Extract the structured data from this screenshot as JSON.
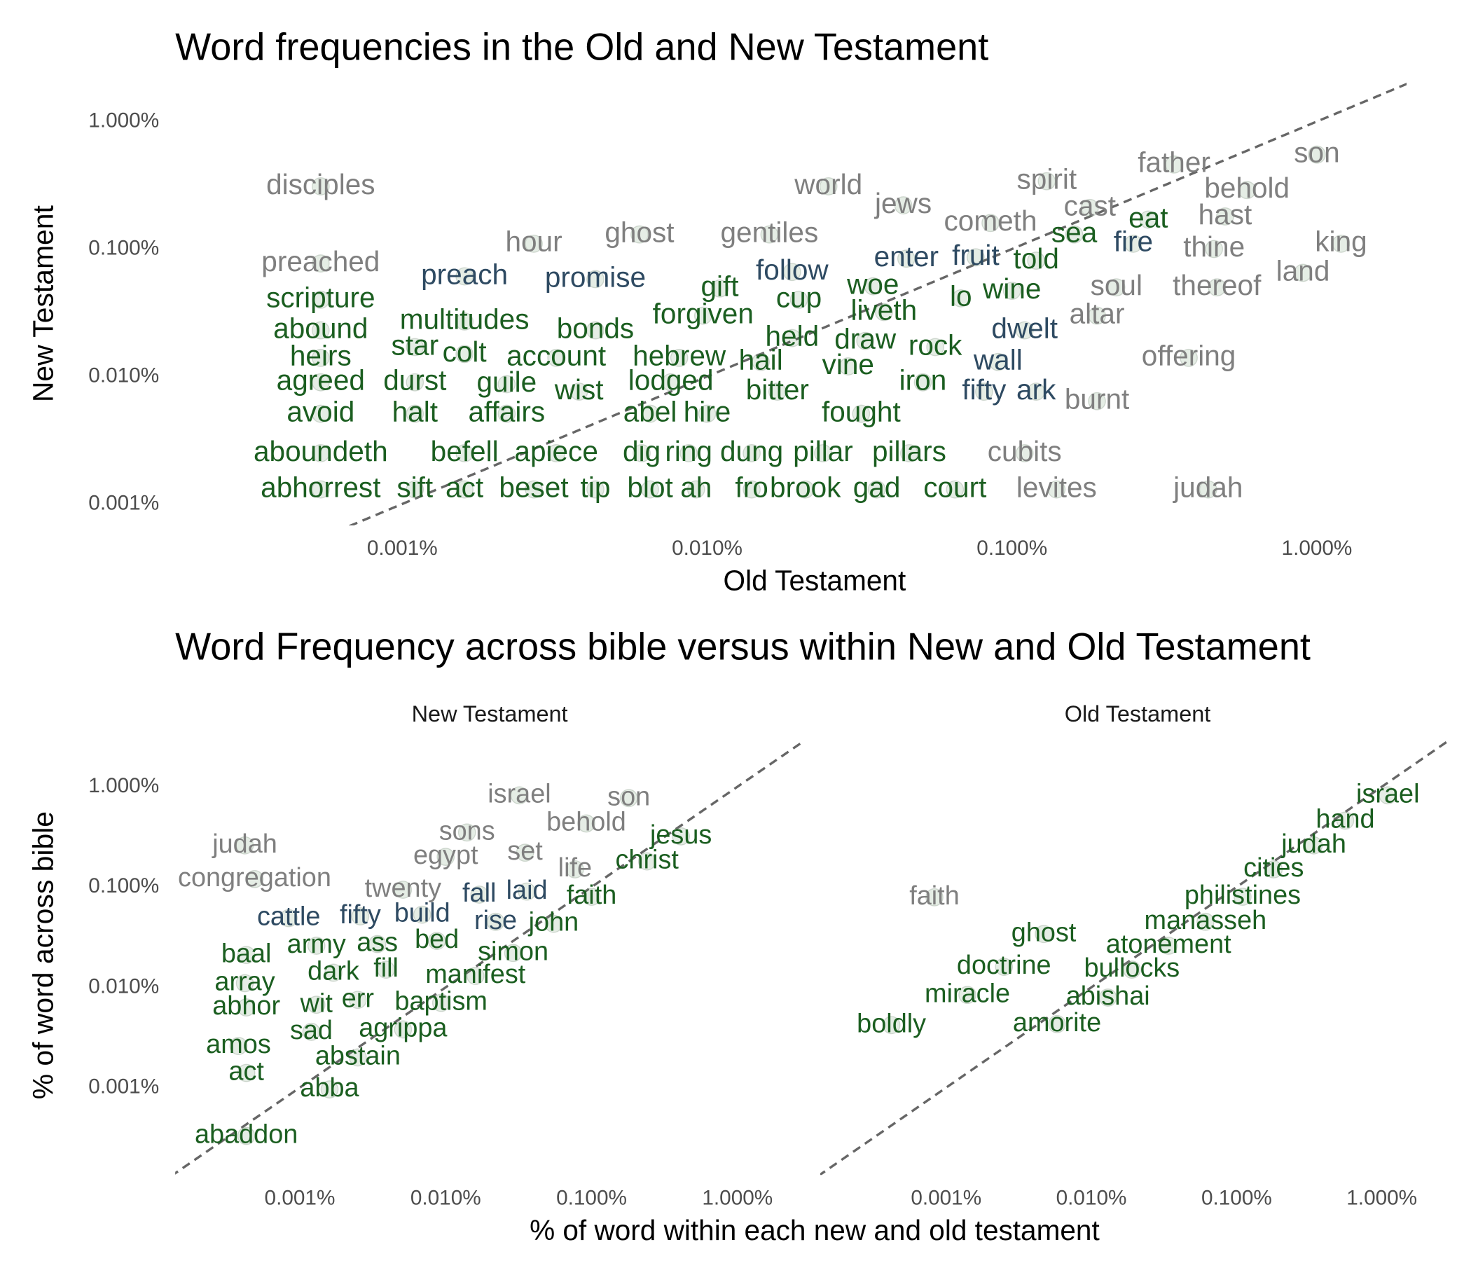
{
  "chart_data": [
    {
      "type": "scatter",
      "title": "Word frequencies in the Old and New Testament",
      "xlabel": "Old Testament",
      "ylabel": "New Testament",
      "xscale": "log",
      "yscale": "log",
      "diagonal": true,
      "point_color": "#2d6a2d",
      "xlim": [
        0.00018,
        1.9
      ],
      "ylim": [
        0.00074,
        1.9
      ],
      "xticks": [
        {
          "value": 0.001,
          "label": "0.001%"
        },
        {
          "value": 0.01,
          "label": "0.010%"
        },
        {
          "value": 0.1,
          "label": "0.100%"
        },
        {
          "value": 1,
          "label": "1.000%"
        }
      ],
      "yticks": [
        {
          "value": 0.001,
          "label": "0.001%"
        },
        {
          "value": 0.01,
          "label": "0.010%"
        },
        {
          "value": 0.1,
          "label": "0.100%"
        },
        {
          "value": 1,
          "label": "1.000%"
        }
      ],
      "words": [
        "disciples",
        "world",
        "jews",
        "spirit",
        "father",
        "son",
        "behold",
        "cast",
        "cometh",
        "hast",
        "hour",
        "ghost",
        "gentiles",
        "thine",
        "king",
        "preached",
        "land",
        "soul",
        "thereof",
        "altar",
        "offering",
        "burnt",
        "cubits",
        "levites",
        "judah",
        "preach",
        "promise",
        "follow",
        "enter",
        "dwelt",
        "wall",
        "fifty",
        "ark",
        "fire",
        "fruit",
        "scripture",
        "abound",
        "heirs",
        "agreed",
        "avoid",
        "aboundeth",
        "abhorrest",
        "multitudes",
        "star",
        "colt",
        "account",
        "durst",
        "guile",
        "wist",
        "halt",
        "affairs",
        "befell",
        "apiece",
        "sift",
        "act",
        "beset",
        "tip",
        "bonds",
        "forgiven",
        "gift",
        "cup",
        "woe",
        "liveth",
        "held",
        "draw",
        "hebrew",
        "hail",
        "vine",
        "lo",
        "rock",
        "iron",
        "bitter",
        "lodged",
        "abel",
        "hire",
        "fought",
        "dig",
        "ring",
        "dung",
        "pillar",
        "pillars",
        "blot",
        "ah",
        "fro",
        "brook",
        "gad",
        "court",
        "eat",
        "told",
        "wine",
        "sea"
      ],
      "x": [
        0.00054,
        0.025,
        0.044,
        0.13,
        0.34,
        1.0,
        0.59,
        0.18,
        0.085,
        0.5,
        0.0027,
        0.006,
        0.016,
        0.46,
        1.2,
        0.00054,
        0.9,
        0.22,
        0.47,
        0.19,
        0.38,
        0.19,
        0.11,
        0.14,
        0.44,
        0.0016,
        0.0043,
        0.019,
        0.045,
        0.11,
        0.09,
        0.081,
        0.12,
        0.25,
        0.076,
        0.00054,
        0.00054,
        0.00054,
        0.00054,
        0.00054,
        0.00054,
        0.00054,
        0.0016,
        0.0011,
        0.0016,
        0.0032,
        0.0011,
        0.0022,
        0.0038,
        0.0011,
        0.0022,
        0.0016,
        0.0032,
        0.0011,
        0.0016,
        0.0027,
        0.0043,
        0.0043,
        0.0097,
        0.011,
        0.02,
        0.035,
        0.038,
        0.019,
        0.033,
        0.0081,
        0.015,
        0.029,
        0.068,
        0.056,
        0.051,
        0.017,
        0.0076,
        0.0065,
        0.01,
        0.032,
        0.0061,
        0.0087,
        0.014,
        0.024,
        0.046,
        0.0065,
        0.0092,
        0.014,
        0.021,
        0.036,
        0.065,
        0.28,
        0.12,
        0.1,
        0.16
      ],
      "y": [
        0.31,
        0.31,
        0.22,
        0.34,
        0.46,
        0.55,
        0.29,
        0.21,
        0.16,
        0.18,
        0.11,
        0.13,
        0.13,
        0.1,
        0.11,
        0.077,
        0.065,
        0.05,
        0.05,
        0.03,
        0.014,
        0.0064,
        0.0025,
        0.0013,
        0.0013,
        0.061,
        0.058,
        0.066,
        0.084,
        0.023,
        0.013,
        0.0076,
        0.0076,
        0.11,
        0.086,
        0.04,
        0.023,
        0.014,
        0.009,
        0.0051,
        0.0025,
        0.0013,
        0.027,
        0.017,
        0.015,
        0.014,
        0.009,
        0.0087,
        0.0076,
        0.0051,
        0.0051,
        0.0025,
        0.0025,
        0.0013,
        0.0013,
        0.0013,
        0.0013,
        0.023,
        0.03,
        0.049,
        0.04,
        0.051,
        0.032,
        0.02,
        0.019,
        0.014,
        0.013,
        0.012,
        0.041,
        0.017,
        0.009,
        0.0076,
        0.009,
        0.0051,
        0.0051,
        0.0051,
        0.0025,
        0.0025,
        0.0025,
        0.0025,
        0.0025,
        0.0013,
        0.0013,
        0.0013,
        0.0013,
        0.0013,
        0.0013,
        0.17,
        0.081,
        0.047,
        0.13
      ],
      "label_colors": [
        "#7f7f7f",
        "#7f7f7f",
        "#7f7f7f",
        "#7f7f7f",
        "#7f7f7f",
        "#7f7f7f",
        "#7f7f7f",
        "#7f7f7f",
        "#7f7f7f",
        "#7f7f7f",
        "#7f7f7f",
        "#7f7f7f",
        "#7f7f7f",
        "#7f7f7f",
        "#7f7f7f",
        "#7f7f7f",
        "#7f7f7f",
        "#7f7f7f",
        "#7f7f7f",
        "#7f7f7f",
        "#7f7f7f",
        "#7f7f7f",
        "#7f7f7f",
        "#7f7f7f",
        "#7f7f7f",
        "#2e4a62",
        "#2e4a62",
        "#2e4a62",
        "#2e4a62",
        "#2e4a62",
        "#2e4a62",
        "#2e4a62",
        "#2e4a62",
        "#2e4a62",
        "#2e4a62",
        "#1b5e20",
        "#1b5e20",
        "#1b5e20",
        "#1b5e20",
        "#1b5e20",
        "#1b5e20",
        "#1b5e20",
        "#1b5e20",
        "#1b5e20",
        "#1b5e20",
        "#1b5e20",
        "#1b5e20",
        "#1b5e20",
        "#1b5e20",
        "#1b5e20",
        "#1b5e20",
        "#1b5e20",
        "#1b5e20",
        "#1b5e20",
        "#1b5e20",
        "#1b5e20",
        "#1b5e20",
        "#1b5e20",
        "#1b5e20",
        "#1b5e20",
        "#1b5e20",
        "#1b5e20",
        "#1b5e20",
        "#1b5e20",
        "#1b5e20",
        "#1b5e20",
        "#1b5e20",
        "#1b5e20",
        "#1b5e20",
        "#1b5e20",
        "#1b5e20",
        "#1b5e20",
        "#1b5e20",
        "#1b5e20",
        "#1b5e20",
        "#1b5e20",
        "#1b5e20",
        "#1b5e20",
        "#1b5e20",
        "#1b5e20",
        "#1b5e20",
        "#1b5e20",
        "#1b5e20",
        "#1b5e20",
        "#1b5e20",
        "#1b5e20",
        "#1b5e20",
        "#1b5e20",
        "#1b5e20",
        "#1b5e20",
        "#1b5e20"
      ]
    },
    {
      "type": "scatter",
      "title": "Word Frequency across bible versus within New and Old Testament",
      "xlabel": "% of word within each new and old testament",
      "ylabel": "% of word across bible",
      "xscale": "log",
      "yscale": "log",
      "diagonal": true,
      "point_color": "#2d6a2d",
      "xlim": [
        0.00014,
        2.7
      ],
      "ylim": [
        0.00015,
        2.9
      ],
      "xticks": [
        {
          "value": 0.001,
          "label": "0.001%"
        },
        {
          "value": 0.01,
          "label": "0.010%"
        },
        {
          "value": 0.1,
          "label": "0.100%"
        },
        {
          "value": 1,
          "label": "1.000%"
        }
      ],
      "yticks": [
        {
          "value": 0.001,
          "label": "0.001%"
        },
        {
          "value": 0.01,
          "label": "0.010%"
        },
        {
          "value": 0.1,
          "label": "0.100%"
        },
        {
          "value": 1,
          "label": "1.000%"
        }
      ],
      "panels": [
        {
          "title": "New Testament",
          "words": [
            "israel",
            "son",
            "judah",
            "sons",
            "behold",
            "congregation",
            "egypt",
            "set",
            "life",
            "twenty",
            "fall",
            "laid",
            "cattle",
            "fifty",
            "build",
            "rise",
            "jesus",
            "christ",
            "faith",
            "john",
            "simon",
            "manifest",
            "baal",
            "army",
            "ass",
            "bed",
            "array",
            "dark",
            "fill",
            "abhor",
            "wit",
            "err",
            "baptism",
            "amos",
            "sad",
            "agrippa",
            "abstain",
            "act",
            "abba",
            "abaddon"
          ],
          "x": [
            0.032,
            0.18,
            0.00042,
            0.014,
            0.092,
            0.00049,
            0.01,
            0.035,
            0.077,
            0.0051,
            0.017,
            0.036,
            0.00084,
            0.0026,
            0.0069,
            0.022,
            0.41,
            0.24,
            0.1,
            0.055,
            0.029,
            0.016,
            0.00043,
            0.0013,
            0.0034,
            0.0087,
            0.00042,
            0.0017,
            0.0039,
            0.00043,
            0.0013,
            0.0025,
            0.0093,
            0.00038,
            0.0012,
            0.0051,
            0.0025,
            0.00043,
            0.0016,
            0.00043
          ],
          "y": [
            0.82,
            0.77,
            0.26,
            0.35,
            0.43,
            0.12,
            0.2,
            0.22,
            0.15,
            0.094,
            0.084,
            0.09,
            0.049,
            0.051,
            0.053,
            0.045,
            0.32,
            0.18,
            0.08,
            0.043,
            0.022,
            0.013,
            0.021,
            0.026,
            0.027,
            0.029,
            0.011,
            0.014,
            0.015,
            0.0063,
            0.0067,
            0.0075,
            0.007,
            0.0026,
            0.0036,
            0.0038,
            0.002,
            0.0014,
            0.00096,
            0.00033
          ],
          "label_colors": [
            "#7f7f7f",
            "#7f7f7f",
            "#7f7f7f",
            "#7f7f7f",
            "#7f7f7f",
            "#7f7f7f",
            "#7f7f7f",
            "#7f7f7f",
            "#7f7f7f",
            "#7f7f7f",
            "#2e4a62",
            "#2e4a62",
            "#2e4a62",
            "#2e4a62",
            "#2e4a62",
            "#2e4a62",
            "#1b5e20",
            "#1b5e20",
            "#1b5e20",
            "#1b5e20",
            "#1b5e20",
            "#1b5e20",
            "#1b5e20",
            "#1b5e20",
            "#1b5e20",
            "#1b5e20",
            "#1b5e20",
            "#1b5e20",
            "#1b5e20",
            "#1b5e20",
            "#1b5e20",
            "#1b5e20",
            "#1b5e20",
            "#1b5e20",
            "#1b5e20",
            "#1b5e20",
            "#1b5e20",
            "#1b5e20",
            "#1b5e20",
            "#1b5e20"
          ]
        },
        {
          "title": "Old Testament",
          "words": [
            "faith",
            "israel",
            "hand",
            "judah",
            "cities",
            "philistines",
            "manasseh",
            "ghost",
            "atonement",
            "doctrine",
            "bullocks",
            "miracle",
            "abishai",
            "boldly",
            "amorite"
          ],
          "x": [
            0.00083,
            1.1,
            0.56,
            0.34,
            0.18,
            0.11,
            0.061,
            0.0047,
            0.034,
            0.0025,
            0.019,
            0.0014,
            0.013,
            0.00042,
            0.0058
          ],
          "y": [
            0.079,
            0.82,
            0.46,
            0.26,
            0.15,
            0.08,
            0.045,
            0.034,
            0.026,
            0.016,
            0.015,
            0.0084,
            0.0079,
            0.0042,
            0.0043
          ],
          "label_colors": [
            "#7f7f7f",
            "#1b5e20",
            "#1b5e20",
            "#1b5e20",
            "#1b5e20",
            "#1b5e20",
            "#1b5e20",
            "#1b5e20",
            "#1b5e20",
            "#1b5e20",
            "#1b5e20",
            "#1b5e20",
            "#1b5e20",
            "#1b5e20",
            "#1b5e20"
          ]
        }
      ]
    }
  ]
}
